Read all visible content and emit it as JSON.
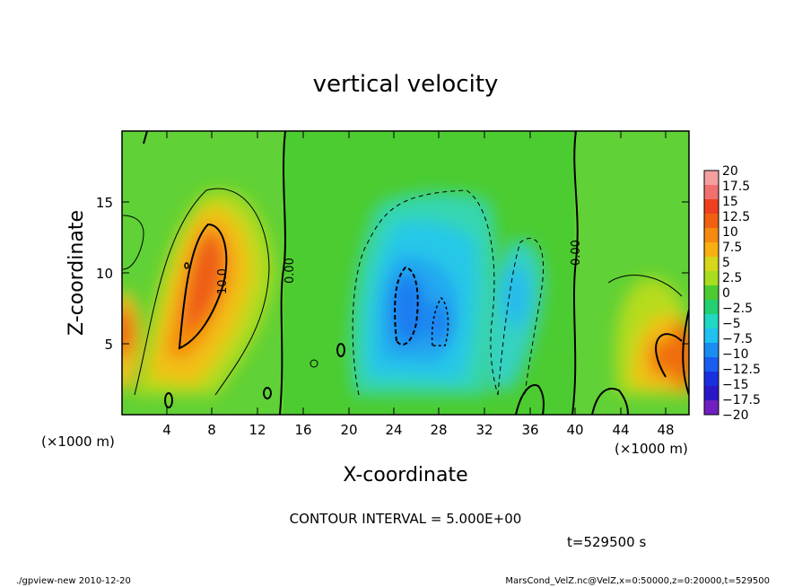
{
  "chart_data": {
    "type": "heatmap",
    "title": "vertical velocity",
    "xlabel": "X-coordinate",
    "ylabel": "Z-coordinate",
    "x_unit": "(×1000 m)",
    "z_unit": "(×1000 m)",
    "xlim": [
      0,
      50
    ],
    "ylim": [
      0,
      20
    ],
    "x_ticks": [
      "4",
      "8",
      "12",
      "16",
      "20",
      "24",
      "28",
      "32",
      "36",
      "40",
      "44",
      "48"
    ],
    "y_ticks": [
      "5",
      "10",
      "15"
    ],
    "contour_interval_label": "CONTOUR INTERVAL = 5.000E+00",
    "contour_labels": [
      "0.00",
      "10.0",
      "0.00"
    ],
    "time_label": "t=529500 s",
    "colorbar_levels": [
      "20",
      "17.5",
      "15",
      "12.5",
      "10",
      "7.5",
      "5",
      "2.5",
      "0",
      "−2.5",
      "−5",
      "−7.5",
      "−10",
      "−12.5",
      "−15",
      "−17.5",
      "−20"
    ],
    "colorbar_colors": [
      "#f4a0a0",
      "#f07070",
      "#ee4020",
      "#f06010",
      "#f58a10",
      "#f8b010",
      "#d6d61a",
      "#a8dc1e",
      "#4ccc30",
      "#22d070",
      "#20d8c4",
      "#20c0f0",
      "#1a8cf2",
      "#1a5cf0",
      "#1a30e0",
      "#2a18c8",
      "#7020c0"
    ],
    "features": [
      {
        "name": "updraft-left",
        "x": 8,
        "z": 10.5,
        "w": 12
      },
      {
        "name": "updraft-left-low",
        "x": 0.5,
        "z": 6,
        "w": 8
      },
      {
        "name": "downdraft-center",
        "x": 25,
        "z": 8,
        "w": -10
      },
      {
        "name": "downdraft-right",
        "x": 34,
        "z": 8,
        "w": -6
      },
      {
        "name": "updraft-right",
        "x": 49,
        "z": 5,
        "w": 11
      }
    ]
  },
  "footer": {
    "left": "./gpview-new 2010-12-20",
    "right": "MarsCond_VelZ.nc@VelZ,x=0:50000,z=0:20000,t=529500"
  }
}
